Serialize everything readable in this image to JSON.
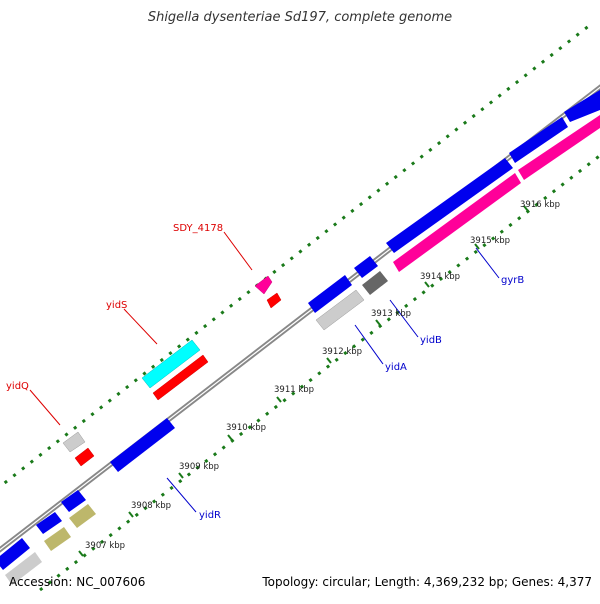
{
  "title": "Shigella dysenteriae Sd197, complete genome",
  "footer": {
    "accession": "Accession: NC_007606",
    "summary": "Topology: circular; Length: 4,369,232 bp; Genes: 4,377"
  },
  "colors": {
    "backbone": "#888888",
    "tick": "#1a7a1a",
    "blue": "#0000ee",
    "red": "#ff0000",
    "cyan": "#00ffff",
    "magenta": "#ff0099",
    "silver": "#cccccc",
    "dark_gray": "#666666",
    "olive": "#bdb76b",
    "red_label": "#dd0000",
    "blue_label": "#0000cc"
  },
  "ticks": [
    "3907 kbp",
    "3908 kbp",
    "3909 kbp",
    "3910 kbp",
    "3911 kbp",
    "3912 kbp",
    "3913 kbp",
    "3914 kbp",
    "3915 kbp",
    "3916 kbp"
  ],
  "labels": {
    "sdy_4178": "SDY_4178",
    "yidS": "yidS",
    "yidQ": "yidQ",
    "yidR": "yidR",
    "yidA": "yidA",
    "yidB": "yidB",
    "gyrB": "gyrB"
  }
}
